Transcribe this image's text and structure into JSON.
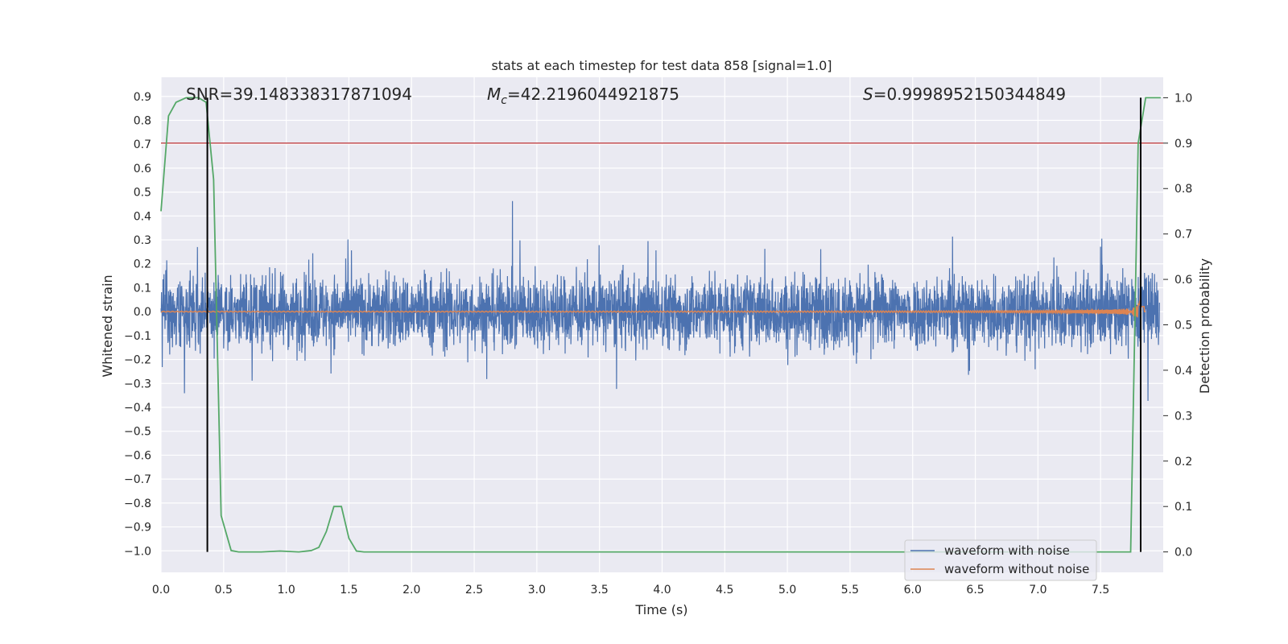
{
  "chart_data": {
    "type": "line",
    "title": "stats at each timestep for test data 858 [signal=1.0]",
    "xlabel": "Time (s)",
    "ylabel": "Whitened strain",
    "y2label": "Detection probability",
    "xlim": [
      0.0,
      8.0
    ],
    "ylim": [
      -1.09,
      0.98
    ],
    "y2lim": [
      -0.045,
      1.045
    ],
    "xticks": [
      "0.0",
      "0.5",
      "1.0",
      "1.5",
      "2.0",
      "2.5",
      "3.0",
      "3.5",
      "4.0",
      "4.5",
      "5.0",
      "5.5",
      "6.0",
      "6.5",
      "7.0",
      "7.5"
    ],
    "yticks": [
      "0.9",
      "0.8",
      "0.7",
      "0.6",
      "0.5",
      "0.4",
      "0.3",
      "0.2",
      "0.1",
      "0.0",
      "−0.1",
      "−0.2",
      "−0.3",
      "−0.4",
      "−0.5",
      "−0.6",
      "−0.7",
      "−0.8",
      "−0.9",
      "−1.0"
    ],
    "y2ticks": [
      "1.0",
      "0.9",
      "0.8",
      "0.7",
      "0.6",
      "0.5",
      "0.4",
      "0.3",
      "0.2",
      "0.1",
      "0.0"
    ],
    "annotations": {
      "snr": "SNR=39.148338317871094",
      "mc_symbol": "M",
      "mc_sub": "c",
      "mc_value": "=42.2196044921875",
      "s_symbol": "S",
      "s_value": "=0.9998952150344849"
    },
    "threshold": {
      "axis": "right",
      "value": 0.9,
      "color": "#c44e52"
    },
    "vlines": [
      0.37,
      7.82
    ],
    "grid": true,
    "legend_placement": "lower-right",
    "series": [
      {
        "name": "waveform with noise",
        "color": "#4c72b0",
        "axis": "left",
        "description": "whitened noisy strain, roughly -0.3..0.3 with a spike near 7.8 s",
        "noise_amplitude": 0.3
      },
      {
        "name": "waveform without noise",
        "color": "#dd8452",
        "axis": "left",
        "description": "chirp signal growing toward merger near 7.82 s",
        "t_merger": 7.82
      },
      {
        "name": "",
        "color": "#55a868",
        "axis": "right",
        "x": [
          0.0,
          0.06,
          0.12,
          0.2,
          0.3,
          0.36,
          0.42,
          0.48,
          0.56,
          0.62,
          0.8,
          0.95,
          1.1,
          1.2,
          1.26,
          1.32,
          1.38,
          1.44,
          1.5,
          1.56,
          1.62,
          1.7,
          7.5,
          7.62,
          7.74,
          7.8,
          7.86,
          7.92,
          7.98
        ],
        "values": [
          0.75,
          0.96,
          0.99,
          1.0,
          1.0,
          0.99,
          0.82,
          0.08,
          0.003,
          0.0,
          0.0,
          0.002,
          0.0,
          0.003,
          0.01,
          0.045,
          0.1,
          0.1,
          0.03,
          0.002,
          0.0,
          0.0,
          0.0,
          0.0,
          0.0,
          0.9,
          1.0,
          1.0,
          1.0
        ]
      }
    ]
  }
}
